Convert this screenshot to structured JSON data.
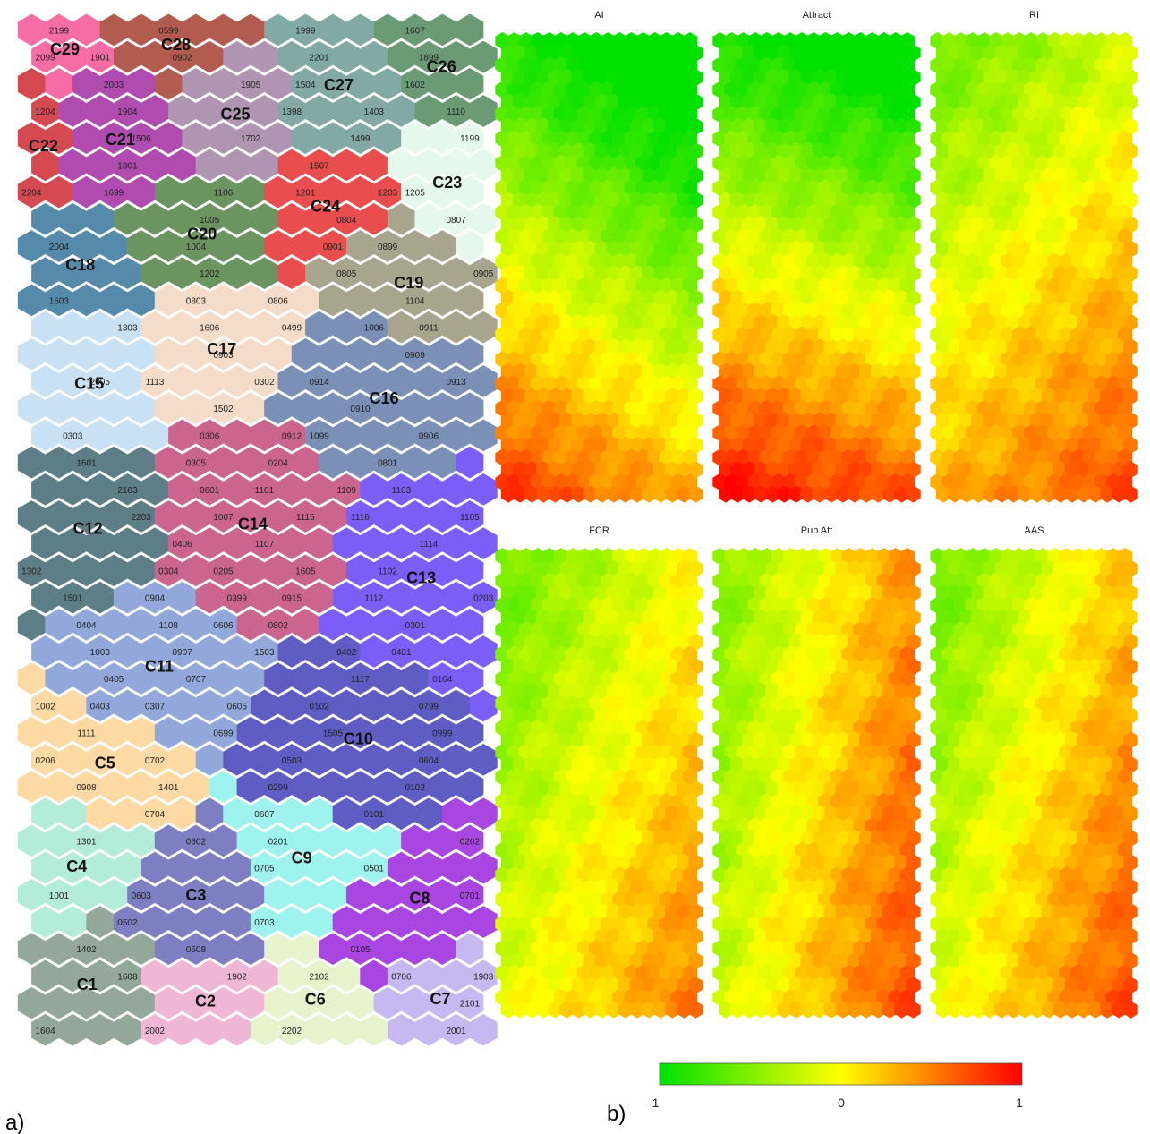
{
  "panel_a": {
    "letter": "a)",
    "grid": {
      "cols": 17,
      "rows": 38
    },
    "clusters": [
      {
        "id": "C1",
        "color": "#93a89a",
        "seed": [
          2,
          35
        ],
        "labels": [
          "1402",
          "1608",
          "1604"
        ]
      },
      {
        "id": "C2",
        "color": "#f0b6d6",
        "seed": [
          6,
          36
        ],
        "labels": [
          "1902",
          "2002"
        ]
      },
      {
        "id": "C3",
        "color": "#7e7ec2",
        "seed": [
          5,
          33
        ],
        "labels": [
          "0602",
          "0603",
          "0502",
          "0608"
        ]
      },
      {
        "id": "C4",
        "color": "#b3ecd8",
        "seed": [
          1,
          31
        ],
        "labels": [
          "1301",
          "1001"
        ]
      },
      {
        "id": "C5",
        "color": "#fdd9a3",
        "seed": [
          2,
          27
        ],
        "labels": [
          "1002",
          "1111",
          "0206",
          "0702",
          "0908",
          "1401",
          "0704"
        ]
      },
      {
        "id": "C6",
        "color": "#e6f3cc",
        "seed": [
          10,
          37
        ],
        "labels": [
          "2102",
          "2202"
        ]
      },
      {
        "id": "C7",
        "color": "#c6b9f1",
        "seed": [
          15,
          36
        ],
        "labels": [
          "0706",
          "1903",
          "2101",
          "2001"
        ]
      },
      {
        "id": "C8",
        "color": "#a945e0",
        "seed": [
          13,
          33
        ],
        "labels": [
          "0202",
          "0701",
          "0105"
        ]
      },
      {
        "id": "C9",
        "color": "#9ef3ef",
        "seed": [
          10,
          31
        ],
        "labels": [
          "0607",
          "0201",
          "0705",
          "0501",
          "0703"
        ]
      },
      {
        "id": "C10",
        "color": "#5f5dc3",
        "seed": [
          11,
          27
        ],
        "labels": [
          "0402",
          "1117",
          "0102",
          "0799",
          "1505",
          "0999",
          "0503",
          "0604",
          "0299",
          "0103",
          "0101"
        ]
      },
      {
        "id": "C11",
        "color": "#93a8da",
        "seed": [
          4,
          24
        ],
        "labels": [
          "0904",
          "0404",
          "1108",
          "0606",
          "1003",
          "0907",
          "1503",
          "0405",
          "0707",
          "0403",
          "0307",
          "0605",
          "0699"
        ]
      },
      {
        "id": "C12",
        "color": "#5d7e87",
        "seed": [
          1,
          18
        ],
        "labels": [
          "1601",
          "2103",
          "2203",
          "1302",
          "1501"
        ]
      },
      {
        "id": "C13",
        "color": "#7a5ef7",
        "seed": [
          15,
          20
        ],
        "labels": [
          "1103",
          "1116",
          "1105",
          "1114",
          "1102",
          "1112",
          "0203",
          "0301",
          "0401",
          "0104"
        ]
      },
      {
        "id": "C14",
        "color": "#cb6590",
        "seed": [
          8,
          18
        ],
        "labels": [
          "0306",
          "0912",
          "0305",
          "0204",
          "0601",
          "1101",
          "1109",
          "1007",
          "1115",
          "0406",
          "1107",
          "0304",
          "0205",
          "1605",
          "0399",
          "0915",
          "0802"
        ]
      },
      {
        "id": "C15",
        "color": "#c8e1f4",
        "seed": [
          1,
          13
        ],
        "labels": [
          "1303",
          "2005",
          "0303"
        ]
      },
      {
        "id": "C16",
        "color": "#7b90b6",
        "seed": [
          12,
          13
        ],
        "labels": [
          "1006",
          "0909",
          "0914",
          "0913",
          "0910",
          "1099",
          "0906",
          "0801"
        ]
      },
      {
        "id": "C17",
        "color": "#f5dcc9",
        "seed": [
          6,
          11
        ],
        "labels": [
          "0803",
          "0806",
          "1606",
          "0499",
          "0903",
          "1113",
          "0302",
          "1502"
        ]
      },
      {
        "id": "C18",
        "color": "#568aab",
        "seed": [
          1,
          9
        ],
        "labels": [
          "2004",
          "1603"
        ]
      },
      {
        "id": "C19",
        "color": "#a8a48e",
        "seed": [
          13,
          9
        ],
        "labels": [
          "0899",
          "0805",
          "0905",
          "1104",
          "0911"
        ]
      },
      {
        "id": "C20",
        "color": "#6b9460",
        "seed": [
          6,
          8
        ],
        "labels": [
          "1106",
          "1005",
          "1004",
          "1202"
        ]
      },
      {
        "id": "C21",
        "color": "#b04bb0",
        "seed": [
          3,
          4
        ],
        "labels": [
          "2003",
          "1904",
          "1506",
          "1801",
          "1699"
        ]
      },
      {
        "id": "C22",
        "color": "#d54950",
        "seed": [
          0,
          4
        ],
        "labels": [
          "1204",
          "2204"
        ]
      },
      {
        "id": "C23",
        "color": "#e4f8ec",
        "seed": [
          16,
          6
        ],
        "labels": [
          "1199",
          "1205",
          "0807"
        ]
      },
      {
        "id": "C24",
        "color": "#e94d4d",
        "seed": [
          11,
          6
        ],
        "labels": [
          "1507",
          "1201",
          "1203",
          "0804",
          "0901"
        ]
      },
      {
        "id": "C25",
        "color": "#b095b2",
        "seed": [
          7,
          3
        ],
        "labels": [
          "1905",
          "1702"
        ]
      },
      {
        "id": "C26",
        "color": "#6b9b75",
        "seed": [
          15,
          1
        ],
        "labels": [
          "1607",
          "1899",
          "1602",
          "1110"
        ]
      },
      {
        "id": "C27",
        "color": "#82a9a6",
        "seed": [
          11,
          2
        ],
        "labels": [
          "1999",
          "2201",
          "1504",
          "1398",
          "1403",
          "1499"
        ]
      },
      {
        "id": "C28",
        "color": "#b25c50",
        "seed": [
          5,
          0
        ],
        "labels": [
          "0599",
          "0902"
        ]
      },
      {
        "id": "C29",
        "color": "#f56da4",
        "seed": [
          1,
          0
        ],
        "labels": [
          "2199",
          "2099",
          "1901"
        ]
      }
    ]
  },
  "panel_b": {
    "letter": "b)",
    "maps": [
      {
        "title": "AI"
      },
      {
        "title": "Attract"
      },
      {
        "title": "RI"
      },
      {
        "title": "FCR"
      },
      {
        "title": "Pub Att"
      },
      {
        "title": "AAS"
      }
    ],
    "colorbar": {
      "min_label": "-1",
      "mid_label": "0",
      "max_label": "1",
      "colors": [
        "#00e100",
        "#ffff00",
        "#ff0000"
      ]
    }
  }
}
